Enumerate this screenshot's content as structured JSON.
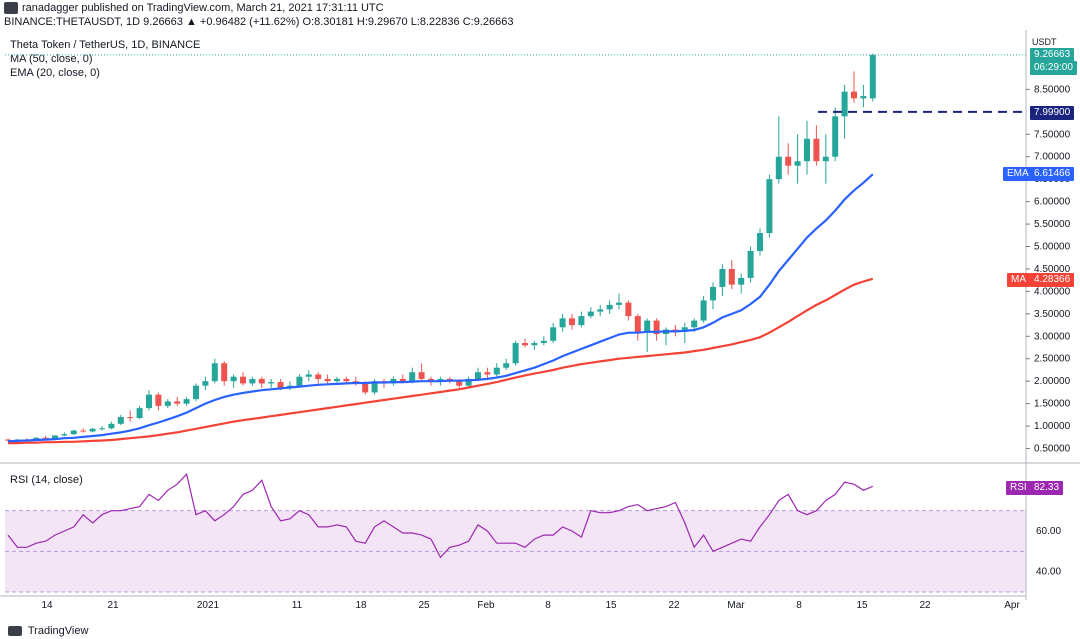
{
  "header": {
    "publisher_line": "ranadagger published on TradingView.com, March 21, 2021 17:31:11 UTC",
    "symbol_line": "BINANCE:THETAUSDT, 1D  9.26663  ▲ +0.96482 (+11.62%)  O:8.30181  H:9.29670  L:8.22836  C:9.26663"
  },
  "legend": {
    "title": "Theta Token / TetherUS, 1D, BINANCE",
    "ma": "MA (50, close, 0)",
    "ema": "EMA (20, close, 0)",
    "rsi": "RSI (14, close)"
  },
  "badges": {
    "currency": "USDT",
    "price": "9.26663",
    "countdown": "06:29:00",
    "resistance": "7.99900",
    "ema_label": "EMA",
    "ema_value": "6.61466",
    "ma_label": "MA",
    "ma_value": "4.28366",
    "rsi_label": "RSI",
    "rsi_value": "82.33"
  },
  "footer": {
    "brand": "TradingView"
  },
  "colors": {
    "up": "#26a69a",
    "down": "#ef5350",
    "ema": "#2962ff",
    "ma": "#f44336",
    "rsi": "#9c27b0",
    "rsi_band": "#f3e5f5",
    "resistance": "#1a237e"
  },
  "chart_data": {
    "type": "candlestick",
    "price_ticks": [
      "0.50000",
      "1.00000",
      "1.50000",
      "2.00000",
      "2.50000",
      "3.00000",
      "3.50000",
      "4.00000",
      "4.50000",
      "5.00000",
      "5.50000",
      "6.00000",
      "6.50000",
      "7.00000",
      "7.50000",
      "8.50000"
    ],
    "price_range": [
      0.2,
      9.6
    ],
    "rsi_ticks": [
      "40.00",
      "60.00"
    ],
    "rsi_range": [
      30,
      90
    ],
    "x_ticks": [
      "14",
      "21",
      "2021",
      "11",
      "18",
      "25",
      "Feb",
      "8",
      "15",
      "22",
      "Mar",
      "8",
      "15",
      "22",
      "Apr"
    ],
    "resistance": 7.999,
    "candles_ohlc": [
      [
        0.7,
        0.72,
        0.66,
        0.68
      ],
      [
        0.68,
        0.71,
        0.65,
        0.7
      ],
      [
        0.7,
        0.73,
        0.68,
        0.69
      ],
      [
        0.69,
        0.75,
        0.68,
        0.74
      ],
      [
        0.74,
        0.78,
        0.72,
        0.73
      ],
      [
        0.73,
        0.8,
        0.71,
        0.79
      ],
      [
        0.79,
        0.86,
        0.77,
        0.82
      ],
      [
        0.82,
        0.92,
        0.8,
        0.9
      ],
      [
        0.9,
        0.95,
        0.85,
        0.88
      ],
      [
        0.88,
        0.96,
        0.86,
        0.94
      ],
      [
        0.94,
        1.0,
        0.9,
        0.95
      ],
      [
        0.95,
        1.1,
        0.93,
        1.05
      ],
      [
        1.05,
        1.25,
        1.02,
        1.2
      ],
      [
        1.2,
        1.35,
        1.1,
        1.18
      ],
      [
        1.18,
        1.45,
        1.15,
        1.4
      ],
      [
        1.4,
        1.8,
        1.35,
        1.7
      ],
      [
        1.7,
        1.75,
        1.35,
        1.45
      ],
      [
        1.45,
        1.6,
        1.4,
        1.55
      ],
      [
        1.55,
        1.65,
        1.45,
        1.5
      ],
      [
        1.5,
        1.65,
        1.45,
        1.6
      ],
      [
        1.6,
        1.95,
        1.55,
        1.9
      ],
      [
        1.9,
        2.1,
        1.8,
        2.0
      ],
      [
        2.0,
        2.5,
        1.95,
        2.4
      ],
      [
        2.4,
        2.45,
        1.9,
        2.0
      ],
      [
        2.0,
        2.15,
        1.85,
        2.1
      ],
      [
        2.1,
        2.2,
        1.9,
        1.95
      ],
      [
        1.95,
        2.1,
        1.9,
        2.05
      ],
      [
        2.05,
        2.1,
        1.85,
        1.95
      ],
      [
        1.95,
        2.05,
        1.85,
        1.98
      ],
      [
        1.98,
        2.05,
        1.8,
        1.85
      ],
      [
        1.85,
        2.0,
        1.8,
        1.9
      ],
      [
        1.9,
        2.15,
        1.85,
        2.1
      ],
      [
        2.1,
        2.25,
        2.0,
        2.15
      ],
      [
        2.15,
        2.2,
        1.95,
        2.05
      ],
      [
        2.05,
        2.15,
        1.95,
        2.0
      ],
      [
        2.0,
        2.1,
        1.95,
        2.05
      ],
      [
        2.05,
        2.1,
        1.95,
        2.0
      ],
      [
        2.0,
        2.1,
        1.9,
        1.95
      ],
      [
        1.95,
        2.0,
        1.7,
        1.75
      ],
      [
        1.75,
        2.05,
        1.7,
        2.0
      ],
      [
        2.0,
        2.05,
        1.85,
        1.95
      ],
      [
        1.95,
        2.1,
        1.9,
        2.05
      ],
      [
        2.05,
        2.15,
        1.95,
        2.0
      ],
      [
        2.0,
        2.3,
        1.95,
        2.2
      ],
      [
        2.2,
        2.4,
        2.0,
        2.05
      ],
      [
        2.05,
        2.1,
        1.9,
        2.0
      ],
      [
        2.0,
        2.1,
        1.9,
        2.05
      ],
      [
        2.05,
        2.1,
        1.95,
        2.0
      ],
      [
        2.0,
        2.05,
        1.85,
        1.9
      ],
      [
        1.9,
        2.1,
        1.85,
        2.05
      ],
      [
        2.05,
        2.3,
        2.0,
        2.2
      ],
      [
        2.2,
        2.3,
        2.05,
        2.15
      ],
      [
        2.15,
        2.4,
        2.1,
        2.3
      ],
      [
        2.3,
        2.5,
        2.25,
        2.4
      ],
      [
        2.4,
        2.9,
        2.35,
        2.85
      ],
      [
        2.85,
        2.95,
        2.75,
        2.8
      ],
      [
        2.8,
        2.9,
        2.7,
        2.85
      ],
      [
        2.85,
        3.0,
        2.8,
        2.9
      ],
      [
        2.9,
        3.3,
        2.85,
        3.2
      ],
      [
        3.2,
        3.5,
        3.1,
        3.4
      ],
      [
        3.4,
        3.5,
        3.15,
        3.25
      ],
      [
        3.25,
        3.55,
        3.2,
        3.45
      ],
      [
        3.45,
        3.65,
        3.4,
        3.55
      ],
      [
        3.55,
        3.7,
        3.45,
        3.6
      ],
      [
        3.6,
        3.8,
        3.5,
        3.7
      ],
      [
        3.7,
        3.95,
        3.6,
        3.75
      ],
      [
        3.75,
        3.8,
        3.35,
        3.45
      ],
      [
        3.45,
        3.5,
        2.9,
        3.1
      ],
      [
        3.1,
        3.4,
        2.65,
        3.35
      ],
      [
        3.35,
        3.4,
        2.9,
        3.05
      ],
      [
        3.05,
        3.2,
        2.8,
        3.15
      ],
      [
        3.15,
        3.25,
        3.0,
        3.1
      ],
      [
        3.1,
        3.3,
        2.85,
        3.2
      ],
      [
        3.2,
        3.4,
        3.1,
        3.35
      ],
      [
        3.35,
        3.9,
        3.3,
        3.8
      ],
      [
        3.8,
        4.2,
        3.6,
        4.1
      ],
      [
        4.1,
        4.6,
        3.9,
        4.5
      ],
      [
        4.5,
        4.7,
        4.05,
        4.15
      ],
      [
        4.15,
        4.4,
        3.95,
        4.3
      ],
      [
        4.3,
        5.0,
        4.2,
        4.9
      ],
      [
        4.9,
        5.4,
        4.8,
        5.3
      ],
      [
        5.3,
        6.6,
        5.2,
        6.5
      ],
      [
        6.5,
        7.9,
        6.4,
        7.0
      ],
      [
        7.0,
        7.3,
        6.6,
        6.8
      ],
      [
        6.8,
        7.5,
        6.4,
        6.9
      ],
      [
        6.9,
        7.8,
        6.6,
        7.4
      ],
      [
        7.4,
        7.7,
        6.8,
        6.9
      ],
      [
        6.9,
        7.5,
        6.4,
        7.0
      ],
      [
        7.0,
        8.1,
        6.9,
        7.9
      ],
      [
        7.9,
        8.6,
        7.4,
        8.45
      ],
      [
        8.45,
        8.9,
        8.2,
        8.3
      ],
      [
        8.3,
        8.6,
        8.1,
        8.35
      ],
      [
        8.3,
        9.3,
        8.23,
        9.27
      ]
    ],
    "ema20": [
      0.66,
      0.67,
      0.68,
      0.69,
      0.7,
      0.71,
      0.73,
      0.74,
      0.76,
      0.78,
      0.8,
      0.83,
      0.86,
      0.9,
      0.95,
      1.02,
      1.08,
      1.15,
      1.22,
      1.3,
      1.4,
      1.5,
      1.58,
      1.65,
      1.7,
      1.74,
      1.77,
      1.8,
      1.82,
      1.84,
      1.86,
      1.88,
      1.9,
      1.92,
      1.93,
      1.94,
      1.95,
      1.96,
      1.96,
      1.97,
      1.97,
      1.98,
      1.98,
      1.99,
      2.0,
      2.0,
      2.0,
      2.01,
      2.01,
      2.02,
      2.03,
      2.05,
      2.08,
      2.12,
      2.18,
      2.24,
      2.3,
      2.38,
      2.46,
      2.56,
      2.64,
      2.72,
      2.8,
      2.88,
      2.96,
      3.04,
      3.08,
      3.08,
      3.1,
      3.1,
      3.11,
      3.11,
      3.12,
      3.14,
      3.2,
      3.3,
      3.42,
      3.5,
      3.58,
      3.72,
      3.88,
      4.15,
      4.45,
      4.7,
      4.95,
      5.2,
      5.4,
      5.58,
      5.8,
      6.05,
      6.25,
      6.42,
      6.61
    ],
    "ma50": [
      0.62,
      0.62,
      0.63,
      0.63,
      0.64,
      0.64,
      0.65,
      0.65,
      0.66,
      0.67,
      0.68,
      0.69,
      0.71,
      0.73,
      0.75,
      0.77,
      0.8,
      0.83,
      0.86,
      0.9,
      0.94,
      0.98,
      1.02,
      1.06,
      1.1,
      1.13,
      1.16,
      1.19,
      1.22,
      1.25,
      1.28,
      1.31,
      1.34,
      1.37,
      1.4,
      1.43,
      1.46,
      1.49,
      1.52,
      1.55,
      1.58,
      1.61,
      1.64,
      1.67,
      1.7,
      1.73,
      1.76,
      1.79,
      1.82,
      1.86,
      1.9,
      1.94,
      1.98,
      2.03,
      2.08,
      2.13,
      2.17,
      2.21,
      2.25,
      2.3,
      2.34,
      2.38,
      2.41,
      2.44,
      2.47,
      2.5,
      2.52,
      2.54,
      2.56,
      2.58,
      2.6,
      2.62,
      2.64,
      2.67,
      2.7,
      2.74,
      2.78,
      2.82,
      2.87,
      2.92,
      2.98,
      3.08,
      3.2,
      3.32,
      3.45,
      3.58,
      3.7,
      3.8,
      3.92,
      4.04,
      4.15,
      4.22,
      4.28
    ],
    "rsi": [
      58,
      52,
      52,
      54,
      55,
      58,
      60,
      62,
      68,
      64,
      68,
      70,
      70,
      71,
      72,
      78,
      75,
      80,
      83,
      88,
      68,
      70,
      65,
      68,
      72,
      78,
      80,
      85,
      72,
      65,
      66,
      70,
      68,
      62,
      62,
      63,
      62,
      55,
      54,
      62,
      65,
      62,
      59,
      59,
      58,
      56,
      47,
      52,
      53,
      55,
      63,
      60,
      54,
      54,
      54,
      52,
      56,
      58,
      58,
      62,
      60,
      57,
      70,
      69,
      69,
      70,
      72,
      73,
      70,
      71,
      72,
      74,
      64,
      52,
      58,
      50,
      52,
      54,
      56,
      55,
      62,
      68,
      75,
      78,
      70,
      68,
      70,
      75,
      78,
      84,
      83,
      80,
      82
    ]
  }
}
